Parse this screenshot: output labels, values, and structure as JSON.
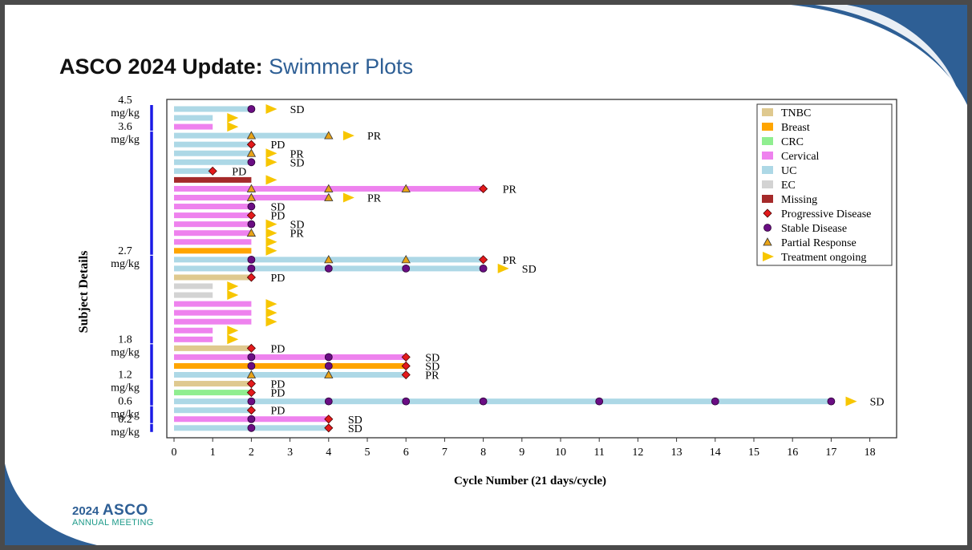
{
  "slide": {
    "title_bold": "ASCO 2024 Update:",
    "title_rest": "Swimmer Plots",
    "logo_year": "2024",
    "logo_name": "ASCO",
    "logo_sub": "ANNUAL MEETING",
    "accent_color": "#2e5f95"
  },
  "chart_data": {
    "type": "swimmer",
    "xlabel": "Cycle Number (21 days/cycle)",
    "ylabel": "Subject Details",
    "xlim": [
      0,
      18.5
    ],
    "xticks": [
      0,
      1,
      2,
      3,
      4,
      5,
      6,
      7,
      8,
      9,
      10,
      11,
      12,
      13,
      14,
      15,
      16,
      17,
      18
    ],
    "legend_position": "top-right",
    "colors": {
      "TNBC": "#dfc98f",
      "Breast": "#ffa500",
      "CRC": "#90ee90",
      "Cervical": "#ee82ee",
      "UC": "#add8e6",
      "EC": "#d3d3d3",
      "Missing": "#a52a2a",
      "Progressive Disease": "#e31a1c",
      "Stable Disease": "#6a0d83",
      "Partial Response": "#e8a317",
      "Treatment ongoing": "#f7c600"
    },
    "legend": [
      {
        "label": "TNBC",
        "kind": "bar",
        "key": "TNBC"
      },
      {
        "label": "Breast",
        "kind": "bar",
        "key": "Breast"
      },
      {
        "label": "CRC",
        "kind": "bar",
        "key": "CRC"
      },
      {
        "label": "Cervical",
        "kind": "bar",
        "key": "Cervical"
      },
      {
        "label": "UC",
        "kind": "bar",
        "key": "UC"
      },
      {
        "label": "EC",
        "kind": "bar",
        "key": "EC"
      },
      {
        "label": "Missing",
        "kind": "bar",
        "key": "Missing"
      },
      {
        "label": "Progressive Disease",
        "kind": "diamond",
        "key": "Progressive Disease"
      },
      {
        "label": "Stable Disease",
        "kind": "circle",
        "key": "Stable Disease"
      },
      {
        "label": "Partial Response",
        "kind": "triangle",
        "key": "Partial Response"
      },
      {
        "label": "Treatment ongoing",
        "kind": "arrow",
        "key": "Treatment ongoing"
      }
    ],
    "dose_groups": [
      {
        "line1": "4.5",
        "line2": "mg/kg",
        "rows": [
          1,
          3
        ]
      },
      {
        "line1": "3.6",
        "line2": "mg/kg",
        "rows": [
          4,
          17
        ]
      },
      {
        "line1": "2.7",
        "line2": "mg/kg",
        "rows": [
          18,
          27
        ]
      },
      {
        "line1": "1.8",
        "line2": "mg/kg",
        "rows": [
          28,
          31
        ]
      },
      {
        "line1": "1.2",
        "line2": "mg/kg",
        "rows": [
          32,
          34
        ]
      },
      {
        "line1": "0.6",
        "line2": "mg/kg",
        "rows": [
          35,
          36
        ]
      },
      {
        "line1": "0.2",
        "line2": "mg/kg",
        "rows": [
          37,
          37
        ]
      }
    ],
    "subjects": [
      {
        "row": 1,
        "type": "UC",
        "end": 2,
        "markers": [
          {
            "x": 2,
            "m": "SD"
          }
        ],
        "ongoing": 2.5,
        "label": "SD",
        "label_x": 3.0
      },
      {
        "row": 2,
        "type": "UC",
        "end": 1,
        "markers": [],
        "ongoing": 1.5,
        "label": "",
        "label_x": 0
      },
      {
        "row": 3,
        "type": "Cervical",
        "end": 1,
        "markers": [],
        "ongoing": 1.5,
        "label": "",
        "label_x": 0
      },
      {
        "row": 4,
        "type": "UC",
        "end": 4,
        "markers": [
          {
            "x": 2,
            "m": "PR"
          },
          {
            "x": 4,
            "m": "PR"
          }
        ],
        "ongoing": 4.5,
        "label": "PR",
        "label_x": 5.0
      },
      {
        "row": 5,
        "type": "UC",
        "end": 2,
        "markers": [
          {
            "x": 2,
            "m": "PD"
          }
        ],
        "ongoing": null,
        "label": "PD",
        "label_x": 2.5
      },
      {
        "row": 6,
        "type": "UC",
        "end": 2,
        "markers": [
          {
            "x": 2,
            "m": "PR"
          }
        ],
        "ongoing": 2.5,
        "label": "PR",
        "label_x": 3.0
      },
      {
        "row": 7,
        "type": "UC",
        "end": 2,
        "markers": [
          {
            "x": 2,
            "m": "SD"
          }
        ],
        "ongoing": 2.5,
        "label": "SD",
        "label_x": 3.0
      },
      {
        "row": 8,
        "type": "UC",
        "end": 1,
        "markers": [
          {
            "x": 1,
            "m": "PD"
          }
        ],
        "ongoing": null,
        "label": "PD",
        "label_x": 1.5
      },
      {
        "row": 9,
        "type": "Missing",
        "end": 2,
        "markers": [],
        "ongoing": 2.5,
        "label": "",
        "label_x": 0
      },
      {
        "row": 10,
        "type": "Cervical",
        "end": 8,
        "markers": [
          {
            "x": 2,
            "m": "PR"
          },
          {
            "x": 4,
            "m": "PR"
          },
          {
            "x": 6,
            "m": "PR"
          },
          {
            "x": 8,
            "m": "PD"
          }
        ],
        "ongoing": null,
        "label": "PR",
        "label_x": 8.5
      },
      {
        "row": 11,
        "type": "Cervical",
        "end": 4,
        "markers": [
          {
            "x": 2,
            "m": "PR"
          },
          {
            "x": 4,
            "m": "PR"
          }
        ],
        "ongoing": 4.5,
        "label": "PR",
        "label_x": 5.0
      },
      {
        "row": 12,
        "type": "Cervical",
        "end": 2,
        "markers": [
          {
            "x": 2,
            "m": "SD"
          }
        ],
        "ongoing": null,
        "label": "SD",
        "label_x": 2.5
      },
      {
        "row": 13,
        "type": "Cervical",
        "end": 2,
        "markers": [
          {
            "x": 2,
            "m": "PD"
          }
        ],
        "ongoing": null,
        "label": "PD",
        "label_x": 2.5
      },
      {
        "row": 14,
        "type": "Cervical",
        "end": 2,
        "markers": [
          {
            "x": 2,
            "m": "SD"
          }
        ],
        "ongoing": 2.5,
        "label": "SD",
        "label_x": 3.0
      },
      {
        "row": 15,
        "type": "Cervical",
        "end": 2,
        "markers": [
          {
            "x": 2,
            "m": "PR"
          }
        ],
        "ongoing": 2.5,
        "label": "PR",
        "label_x": 3.0
      },
      {
        "row": 16,
        "type": "Cervical",
        "end": 2,
        "markers": [],
        "ongoing": 2.5,
        "label": "",
        "label_x": 0
      },
      {
        "row": 17,
        "type": "Breast",
        "end": 2,
        "markers": [],
        "ongoing": 2.5,
        "label": "",
        "label_x": 0
      },
      {
        "row": 18,
        "type": "UC",
        "end": 8,
        "markers": [
          {
            "x": 2,
            "m": "SD"
          },
          {
            "x": 4,
            "m": "PR"
          },
          {
            "x": 6,
            "m": "PR"
          },
          {
            "x": 8,
            "m": "PD"
          }
        ],
        "ongoing": null,
        "label": "PR",
        "label_x": 8.5
      },
      {
        "row": 19,
        "type": "UC",
        "end": 8,
        "markers": [
          {
            "x": 2,
            "m": "SD"
          },
          {
            "x": 4,
            "m": "SD"
          },
          {
            "x": 6,
            "m": "SD"
          },
          {
            "x": 8,
            "m": "SD"
          }
        ],
        "ongoing": 8.5,
        "label": "SD",
        "label_x": 9.0
      },
      {
        "row": 20,
        "type": "TNBC",
        "end": 2,
        "markers": [
          {
            "x": 2,
            "m": "PD"
          }
        ],
        "ongoing": null,
        "label": "PD",
        "label_x": 2.5
      },
      {
        "row": 21,
        "type": "EC",
        "end": 1,
        "markers": [],
        "ongoing": 1.5,
        "label": "",
        "label_x": 0
      },
      {
        "row": 22,
        "type": "EC",
        "end": 1,
        "markers": [],
        "ongoing": 1.5,
        "label": "",
        "label_x": 0
      },
      {
        "row": 23,
        "type": "Cervical",
        "end": 2,
        "markers": [],
        "ongoing": 2.5,
        "label": "",
        "label_x": 0
      },
      {
        "row": 24,
        "type": "Cervical",
        "end": 2,
        "markers": [],
        "ongoing": 2.5,
        "label": "",
        "label_x": 0
      },
      {
        "row": 25,
        "type": "Cervical",
        "end": 2,
        "markers": [],
        "ongoing": 2.5,
        "label": "",
        "label_x": 0
      },
      {
        "row": 26,
        "type": "Cervical",
        "end": 1,
        "markers": [],
        "ongoing": 1.5,
        "label": "",
        "label_x": 0
      },
      {
        "row": 27,
        "type": "Cervical",
        "end": 1,
        "markers": [],
        "ongoing": 1.5,
        "label": "",
        "label_x": 0
      },
      {
        "row": 28,
        "type": "TNBC",
        "end": 2,
        "markers": [
          {
            "x": 2,
            "m": "PD"
          }
        ],
        "ongoing": null,
        "label": "PD",
        "label_x": 2.5
      },
      {
        "row": 29,
        "type": "Cervical",
        "end": 6,
        "markers": [
          {
            "x": 2,
            "m": "SD"
          },
          {
            "x": 4,
            "m": "SD"
          },
          {
            "x": 6,
            "m": "PD"
          }
        ],
        "ongoing": null,
        "label": "SD",
        "label_x": 6.5
      },
      {
        "row": 30,
        "type": "Breast",
        "end": 6,
        "markers": [
          {
            "x": 2,
            "m": "SD"
          },
          {
            "x": 4,
            "m": "SD"
          },
          {
            "x": 6,
            "m": "PD"
          }
        ],
        "ongoing": null,
        "label": "SD",
        "label_x": 6.5
      },
      {
        "row": 31,
        "type": "UC",
        "end": 6,
        "markers": [
          {
            "x": 2,
            "m": "PR"
          },
          {
            "x": 4,
            "m": "PR"
          },
          {
            "x": 6,
            "m": "PD"
          }
        ],
        "ongoing": null,
        "label": "PR",
        "label_x": 6.5
      },
      {
        "row": 32,
        "type": "TNBC",
        "end": 2,
        "markers": [
          {
            "x": 2,
            "m": "PD"
          }
        ],
        "ongoing": null,
        "label": "PD",
        "label_x": 2.5
      },
      {
        "row": 33,
        "type": "CRC",
        "end": 2,
        "markers": [
          {
            "x": 2,
            "m": "PD"
          }
        ],
        "ongoing": null,
        "label": "PD",
        "label_x": 2.5
      },
      {
        "row": 34,
        "type": "UC",
        "end": 17,
        "markers": [
          {
            "x": 2,
            "m": "SD"
          },
          {
            "x": 4,
            "m": "SD"
          },
          {
            "x": 6,
            "m": "SD"
          },
          {
            "x": 8,
            "m": "SD"
          },
          {
            "x": 11,
            "m": "SD"
          },
          {
            "x": 14,
            "m": "SD"
          },
          {
            "x": 17,
            "m": "SD"
          }
        ],
        "ongoing": 17.5,
        "label": "SD",
        "label_x": 18.0
      },
      {
        "row": 35,
        "type": "UC",
        "end": 2,
        "markers": [
          {
            "x": 2,
            "m": "PD"
          }
        ],
        "ongoing": null,
        "label": "PD",
        "label_x": 2.5
      },
      {
        "row": 36,
        "type": "Cervical",
        "end": 4,
        "markers": [
          {
            "x": 2,
            "m": "SD"
          },
          {
            "x": 4,
            "m": "PD"
          }
        ],
        "ongoing": null,
        "label": "SD",
        "label_x": 4.5
      },
      {
        "row": 37,
        "type": "UC",
        "end": 4,
        "markers": [
          {
            "x": 2,
            "m": "SD"
          },
          {
            "x": 4,
            "m": "PD"
          }
        ],
        "ongoing": null,
        "label": "SD",
        "label_x": 4.5
      }
    ]
  }
}
